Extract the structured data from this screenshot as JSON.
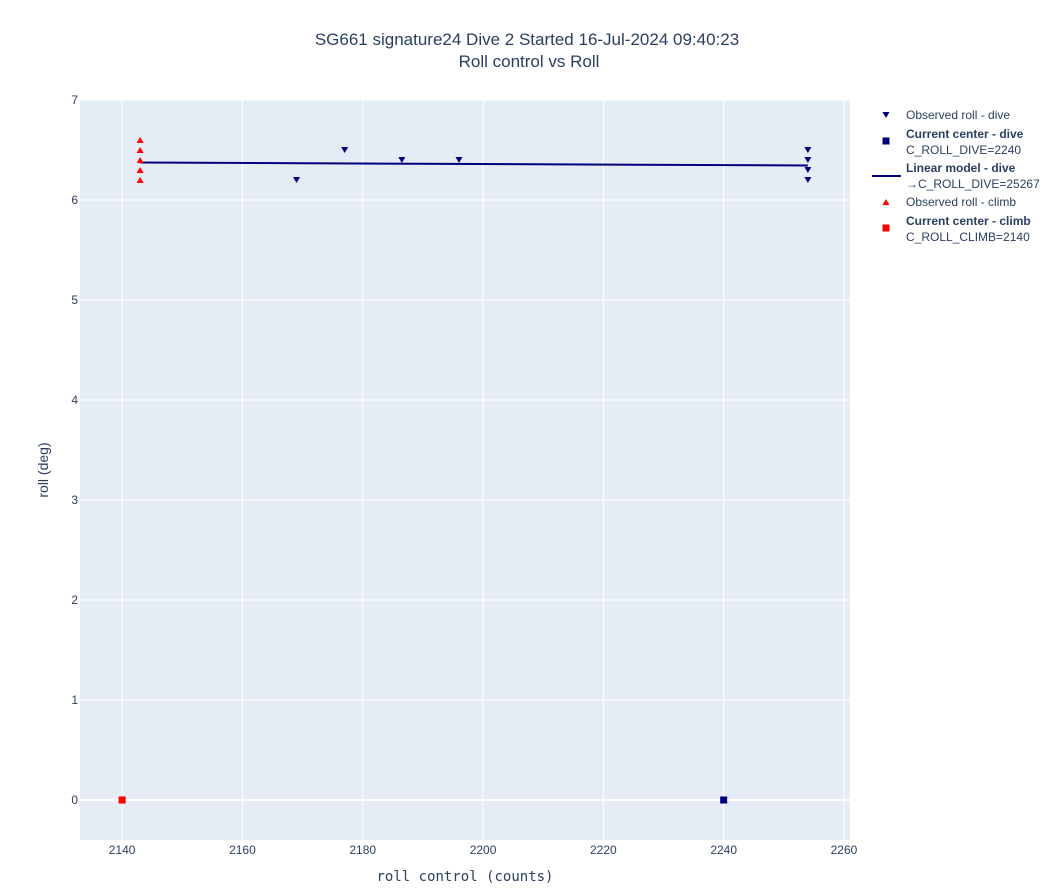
{
  "chart_data": {
    "type": "scatter",
    "title": "SG661 signature24 Dive 2 Started 16-Jul-2024 09:40:23",
    "subtitle": "Roll control vs Roll",
    "xlabel": "roll control (counts)",
    "ylabel": "roll (deg)",
    "xlim": [
      2133,
      2261
    ],
    "ylim": [
      -0.4,
      7
    ],
    "xticks": [
      2140,
      2160,
      2180,
      2200,
      2220,
      2240,
      2260
    ],
    "yticks": [
      0,
      1,
      2,
      3,
      4,
      5,
      6,
      7
    ],
    "grid": true,
    "legend_position": "right",
    "series": [
      {
        "name": "Observed roll - dive",
        "marker": "triangle-down",
        "color": "#00007f",
        "points": [
          {
            "x": 2169,
            "y": 6.2
          },
          {
            "x": 2177,
            "y": 6.5
          },
          {
            "x": 2186.5,
            "y": 6.4
          },
          {
            "x": 2196,
            "y": 6.4
          },
          {
            "x": 2254,
            "y": 6.5
          },
          {
            "x": 2254,
            "y": 6.4
          },
          {
            "x": 2254,
            "y": 6.3
          },
          {
            "x": 2254,
            "y": 6.2
          }
        ]
      },
      {
        "name": "Current center - dive",
        "sub": "C_ROLL_DIVE=2240",
        "bold": true,
        "marker": "square",
        "color": "#00007f",
        "points": [
          {
            "x": 2240,
            "y": 0
          }
        ]
      },
      {
        "name": "Linear model - dive",
        "sub": "→C_ROLL_DIVE=25267",
        "bold": true,
        "marker": "line",
        "color": "#00007f",
        "points": [
          {
            "x": 2143,
            "y": 6.375
          },
          {
            "x": 2254,
            "y": 6.345
          }
        ]
      },
      {
        "name": "Observed roll - climb",
        "marker": "triangle-up",
        "color": "#ff0000",
        "points": [
          {
            "x": 2143,
            "y": 6.6
          },
          {
            "x": 2143,
            "y": 6.5
          },
          {
            "x": 2143,
            "y": 6.4
          },
          {
            "x": 2143,
            "y": 6.3
          },
          {
            "x": 2143,
            "y": 6.2
          }
        ]
      },
      {
        "name": "Current center - climb",
        "sub": "C_ROLL_CLIMB=2140",
        "bold": true,
        "marker": "square",
        "color": "#ff0000",
        "points": [
          {
            "x": 2140,
            "y": 0
          }
        ]
      }
    ]
  }
}
